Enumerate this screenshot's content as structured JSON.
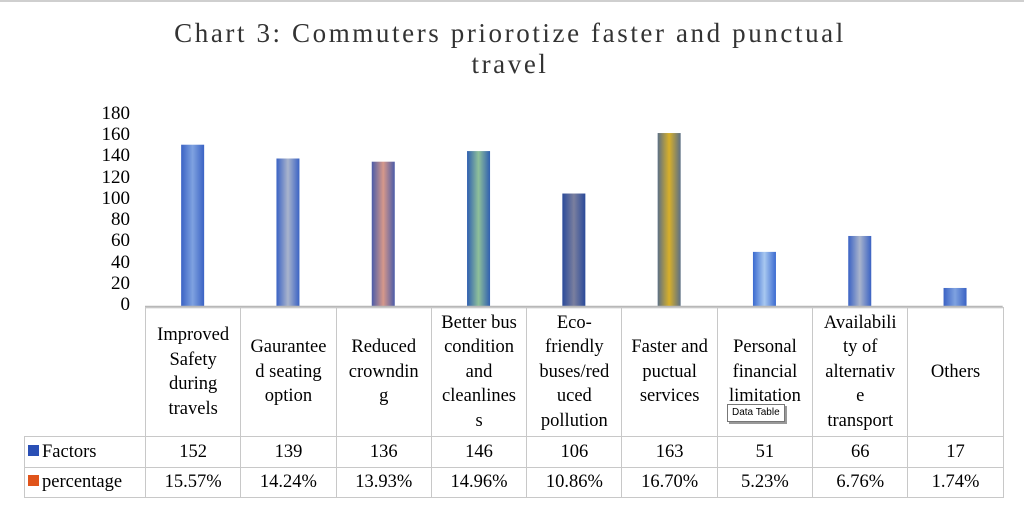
{
  "chart_data": {
    "type": "bar",
    "title": "Chart 3: Commuters priorotize faster and punctual travel",
    "title_lines": [
      "Chart 3: Commuters priorotize faster and punctual",
      "travel"
    ],
    "categories": [
      "Improved Safety during travels",
      "Gaurantee d seating option",
      "Reduced crownding",
      "Better bus condition and cleanlines s",
      "Eco-friendly buses/red uced pollution",
      "Faster and puctual services",
      "Personal financial limitation",
      "Availabili ty of alternativ e transport",
      "Others"
    ],
    "category_lines": [
      [
        "Improved",
        "Safety",
        "during",
        "travels"
      ],
      [
        "Gaurantee",
        "d seating",
        "option"
      ],
      [
        "Reduced",
        "crowndin",
        "g"
      ],
      [
        "Better bus",
        "condition",
        "and",
        "cleanlines",
        "s"
      ],
      [
        "Eco-",
        "friendly",
        "buses/red",
        "uced",
        "pollution"
      ],
      [
        "Faster and",
        "puctual",
        "services"
      ],
      [
        "Personal",
        "financial",
        "limitation"
      ],
      [
        "Availabili",
        "ty of",
        "alternativ",
        "e",
        "transport"
      ],
      [
        "Others"
      ]
    ],
    "series": [
      {
        "name": "Factors",
        "color": "#2a4fb5",
        "values": [
          152,
          139,
          136,
          146,
          106,
          163,
          51,
          66,
          17
        ],
        "labels": [
          "152",
          "139",
          "136",
          "146",
          "106",
          "163",
          "51",
          "66",
          "17"
        ]
      },
      {
        "name": "percentage",
        "color": "#e0541b",
        "values": [
          15.57,
          14.24,
          13.93,
          14.96,
          10.86,
          16.7,
          5.23,
          6.76,
          1.74
        ],
        "labels": [
          "15.57%",
          "14.24%",
          "13.93%",
          "14.96%",
          "10.86%",
          "16.70%",
          "5.23%",
          "6.76%",
          "1.74%"
        ]
      }
    ],
    "bar_fills": [
      [
        "#3a62c4",
        "#7fa2e0"
      ],
      [
        "#3a62c4",
        "#a9b4cc"
      ],
      [
        "#4b5ba8",
        "#d6988a"
      ],
      [
        "#2f5fb0",
        "#8fc09a"
      ],
      [
        "#2a4a9a",
        "#7a7f9e"
      ],
      [
        "#5b6f86",
        "#d8b02a"
      ],
      [
        "#3a6ad0",
        "#a8c8f0"
      ],
      [
        "#3a62c4",
        "#a9b4cc"
      ],
      [
        "#3a62c4",
        "#7fa2e0"
      ]
    ],
    "ylim": [
      0,
      180
    ],
    "yticks": [
      "0",
      "20",
      "40",
      "60",
      "80",
      "100",
      "120",
      "140",
      "160",
      "180"
    ],
    "ytick_values": [
      0,
      20,
      40,
      60,
      80,
      100,
      120,
      140,
      160,
      180
    ],
    "xlabel": "",
    "ylabel": "",
    "grid": false,
    "legend": "data-table-keys",
    "tooltip": "Data Table"
  }
}
